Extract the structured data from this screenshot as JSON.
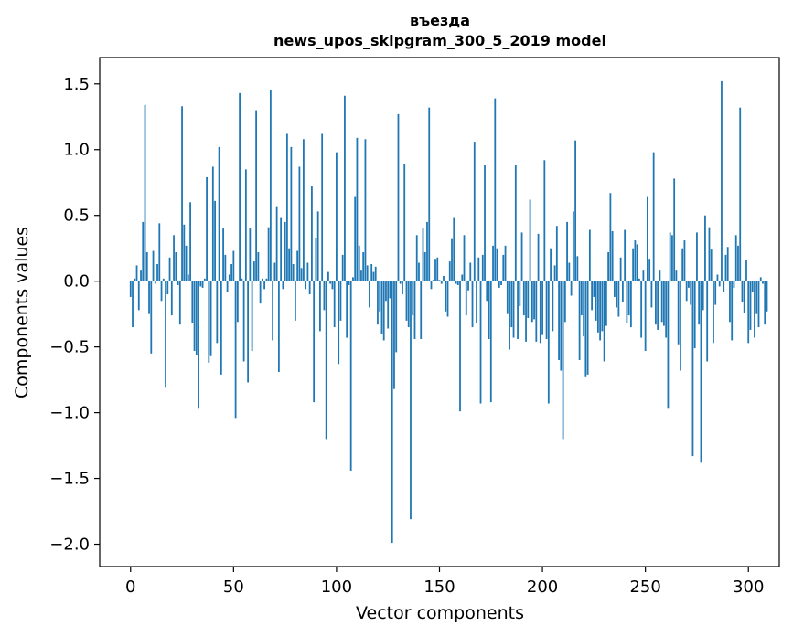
{
  "chart_data": {
    "type": "bar",
    "title": "въезда",
    "subtitle": "news_upos_skipgram_300_5_2019 model",
    "xlabel": "Vector components",
    "ylabel": "Components values",
    "xlim": [
      -15,
      315
    ],
    "ylim": [
      -2.17,
      1.7
    ],
    "xticks": [
      0,
      50,
      100,
      150,
      200,
      250,
      300
    ],
    "yticks": [
      -2.0,
      -1.5,
      -1.0,
      -0.5,
      0.0,
      0.5,
      1.0,
      1.5
    ],
    "ytick_labels": [
      "−2.0",
      "−1.5",
      "−1.0",
      "−0.5",
      "0.0",
      "0.5",
      "1.0",
      "1.5"
    ],
    "grid": false,
    "bar_color": "#1f77b4",
    "values": [
      -0.12,
      -0.35,
      0.02,
      0.12,
      -0.22,
      0.08,
      0.45,
      1.34,
      0.22,
      -0.25,
      -0.55,
      0.23,
      -0.02,
      0.13,
      0.44,
      -0.15,
      0.02,
      -0.81,
      -0.1,
      0.18,
      -0.26,
      0.35,
      0.22,
      -0.03,
      -0.33,
      1.33,
      0.43,
      0.27,
      0.05,
      0.6,
      -0.32,
      -0.53,
      -0.56,
      -0.97,
      -0.04,
      -0.05,
      0.02,
      0.79,
      -0.62,
      -0.57,
      0.87,
      0.61,
      -0.47,
      1.02,
      -0.71,
      0.4,
      0.2,
      -0.08,
      0.05,
      0.13,
      0.23,
      -1.04,
      -0.31,
      1.43,
      0.02,
      -0.61,
      0.85,
      -0.77,
      0.4,
      -0.53,
      0.15,
      1.3,
      0.22,
      -0.17,
      0.02,
      -0.06,
      0.02,
      0.41,
      1.45,
      -0.45,
      0.14,
      0.57,
      -0.69,
      0.48,
      -0.06,
      0.45,
      1.12,
      0.25,
      1.02,
      0.13,
      -0.3,
      0.23,
      0.87,
      0.1,
      1.08,
      -0.06,
      0.14,
      -0.1,
      0.72,
      -0.92,
      0.33,
      0.53,
      -0.38,
      1.12,
      -0.22,
      -1.2,
      0.07,
      -0.02,
      -0.06,
      -0.35,
      0.98,
      -0.63,
      -0.3,
      0.2,
      1.41,
      -0.43,
      -0.03,
      -1.44,
      0.03,
      0.64,
      1.09,
      0.27,
      0.08,
      0.22,
      1.08,
      0.12,
      -0.2,
      0.13,
      0.07,
      0.11,
      -0.33,
      -0.23,
      -0.4,
      -0.45,
      -0.15,
      -0.36,
      -0.13,
      -1.99,
      -0.82,
      -0.54,
      1.27,
      -0.02,
      -0.1,
      0.89,
      -0.3,
      -0.35,
      -1.81,
      -0.26,
      -0.44,
      0.35,
      0.14,
      -0.44,
      0.4,
      0.22,
      0.45,
      1.32,
      -0.06,
      0.01,
      0.17,
      0.18,
      0.01,
      -0.02,
      0.04,
      -0.23,
      -0.27,
      0.15,
      0.32,
      0.48,
      -0.02,
      -0.03,
      -0.99,
      0.05,
      0.35,
      -0.26,
      -0.07,
      0.14,
      -0.35,
      1.06,
      -0.32,
      0.18,
      -0.93,
      0.2,
      0.88,
      -0.15,
      -0.44,
      -0.92,
      0.27,
      1.39,
      0.25,
      -0.05,
      -0.03,
      0.2,
      0.27,
      -0.25,
      -0.52,
      -0.35,
      -0.43,
      0.88,
      -0.44,
      -0.19,
      0.37,
      -0.26,
      -0.46,
      -0.28,
      0.62,
      -0.31,
      -0.29,
      -0.46,
      0.36,
      -0.47,
      -0.41,
      0.92,
      -0.44,
      -0.93,
      0.25,
      -0.38,
      0.12,
      0.42,
      -0.6,
      -0.68,
      -1.2,
      -0.31,
      0.45,
      0.14,
      -0.11,
      0.53,
      1.07,
      0.19,
      -0.6,
      -0.26,
      -0.42,
      -0.73,
      -0.71,
      0.39,
      -0.22,
      -0.12,
      -0.3,
      -0.39,
      -0.45,
      -0.38,
      -0.61,
      -0.34,
      0.22,
      0.67,
      0.38,
      -0.12,
      -0.2,
      -0.27,
      0.18,
      -0.16,
      0.39,
      -0.32,
      -0.26,
      -0.35,
      0.25,
      0.31,
      0.28,
      0.02,
      -0.43,
      0.08,
      -0.53,
      0.64,
      0.17,
      -0.2,
      0.98,
      -0.33,
      -0.37,
      0.08,
      -0.31,
      -0.34,
      -0.43,
      -0.97,
      0.37,
      0.35,
      0.78,
      0.08,
      -0.48,
      -0.68,
      0.25,
      0.31,
      -0.15,
      -0.05,
      -0.18,
      -1.33,
      -0.51,
      0.37,
      -0.33,
      -1.38,
      -0.22,
      0.5,
      -0.61,
      0.41,
      0.24,
      -0.47,
      -0.18,
      0.05,
      -0.04,
      1.52,
      -0.08,
      0.2,
      0.26,
      -0.31,
      -0.45,
      -0.05,
      0.35,
      0.27,
      1.32,
      -0.16,
      -0.24,
      0.16,
      -0.47,
      -0.37,
      -0.08,
      -0.43,
      -0.25,
      -0.35,
      0.03,
      -0.02,
      -0.33,
      -0.23
    ]
  }
}
